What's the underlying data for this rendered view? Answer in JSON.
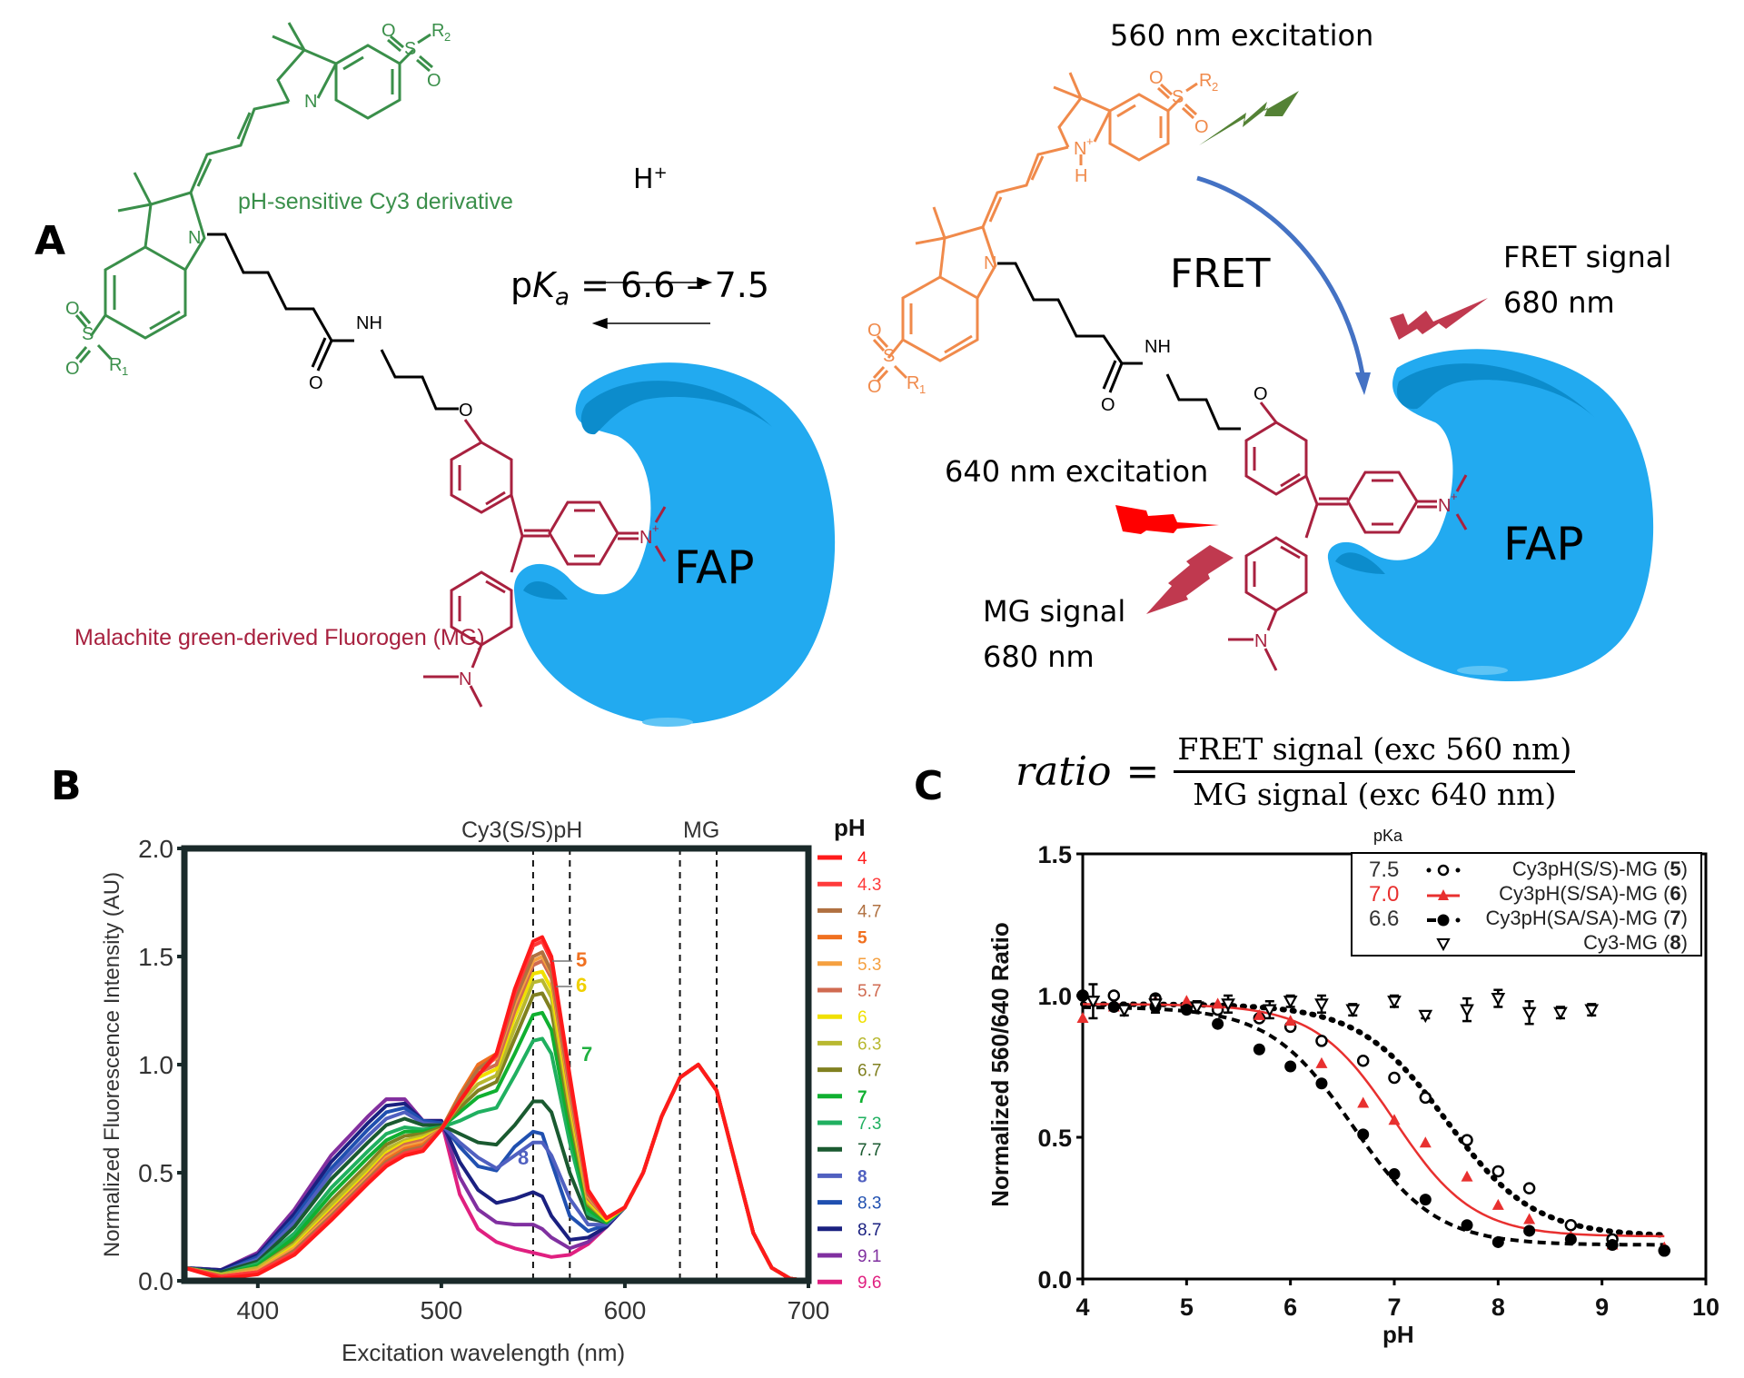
{
  "panelA": {
    "label": "A",
    "left": {
      "cy3_label": "pH-sensitive Cy3 derivative",
      "mg_label": "Malachite green-derived Fluorogen (MG)",
      "atoms": {
        "O": "O",
        "S": "S",
        "R1": "R",
        "R1sub": "1",
        "R2": "R",
        "R2sub": "2",
        "N": "N",
        "NH": "NH",
        "Nplus": "N",
        "plus": "+"
      },
      "fap_label": "FAP"
    },
    "equilibrium": {
      "proton": "H",
      "proton_sup": "+",
      "pka_p": "p",
      "pka_K": "K",
      "pka_a": "a",
      "pka_value": " = 6.6 – 7.5"
    },
    "right": {
      "exc560": "560 nm excitation",
      "fret": "FRET",
      "fret_signal": "FRET signal",
      "fret_signal_nm": "680 nm",
      "exc640": "640 nm excitation",
      "mg_signal": "MG signal",
      "mg_signal_nm": "680 nm",
      "fap_label": "FAP",
      "atoms": {
        "H": "H"
      }
    },
    "colors": {
      "cy3_green": "#3a8f4a",
      "cy3_orange": "#f08a4b",
      "mg_red": "#a8213f",
      "fap_blue": "#22aaf0",
      "fap_dark": "#0c8ccc",
      "fret_arrow": "#4472c4",
      "bolt_green": "#548235",
      "bolt_red": "#ff0000",
      "bolt_crimson": "#c0394f"
    }
  },
  "panelB": {
    "label": "B",
    "chart_data": {
      "type": "line",
      "title": "",
      "xlabel": "Excitation wavelength (nm)",
      "ylabel": "Normalized Fluorescence Intensity (AU)",
      "xlim": [
        360,
        700
      ],
      "ylim": [
        0,
        2.0
      ],
      "xticks": [
        400,
        500,
        600,
        700
      ],
      "yticks": [
        "0.0",
        "0.5",
        "1.0",
        "1.5",
        "2.0"
      ],
      "annotations": {
        "cy3": "Cy3(S/S)pH",
        "mg": "MG",
        "dashed_lines_nm": [
          550,
          570,
          630,
          650
        ],
        "curve_labels": [
          {
            "text": "5",
            "color": "#f07020"
          },
          {
            "text": "6",
            "color": "#f0d000"
          },
          {
            "text": "7",
            "color": "#20b040"
          },
          {
            "text": "8",
            "color": "#5060c0"
          }
        ]
      },
      "legend_title": "pH",
      "legend": [
        {
          "name": "4",
          "color": "#ff1a1a",
          "bold": false
        },
        {
          "name": "4.3",
          "color": "#ff3b3b",
          "bold": false
        },
        {
          "name": "4.7",
          "color": "#b07040",
          "bold": false
        },
        {
          "name": "5",
          "color": "#f07020",
          "bold": true
        },
        {
          "name": "5.3",
          "color": "#f5a040",
          "bold": false
        },
        {
          "name": "5.7",
          "color": "#d06a50",
          "bold": false
        },
        {
          "name": "6",
          "color": "#f0e000",
          "bold": false
        },
        {
          "name": "6.3",
          "color": "#b8b830",
          "bold": false
        },
        {
          "name": "6.7",
          "color": "#808020",
          "bold": false
        },
        {
          "name": "7",
          "color": "#10b030",
          "bold": true
        },
        {
          "name": "7.3",
          "color": "#20b060",
          "bold": false
        },
        {
          "name": "7.7",
          "color": "#1a5a30",
          "bold": false
        },
        {
          "name": "8",
          "color": "#5060c0",
          "bold": true
        },
        {
          "name": "8.3",
          "color": "#2050b0",
          "bold": false
        },
        {
          "name": "8.7",
          "color": "#1a2080",
          "bold": false
        },
        {
          "name": "9.1",
          "color": "#8030a0",
          "bold": false
        },
        {
          "name": "9.6",
          "color": "#e02080",
          "bold": false
        }
      ],
      "x": [
        360,
        380,
        400,
        420,
        440,
        460,
        470,
        480,
        490,
        500,
        510,
        520,
        530,
        540,
        550,
        555,
        560,
        570,
        580,
        590,
        600,
        610,
        620,
        630,
        640,
        650,
        660,
        670,
        680,
        690,
        700
      ],
      "series": [
        {
          "name": "4",
          "values": [
            0.06,
            0.01,
            0.03,
            0.12,
            0.28,
            0.45,
            0.53,
            0.58,
            0.6,
            0.7,
            0.83,
            0.95,
            1.05,
            1.35,
            1.57,
            1.59,
            1.5,
            0.95,
            0.42,
            0.29,
            0.34,
            0.5,
            0.76,
            0.94,
            1.0,
            0.88,
            0.55,
            0.22,
            0.06,
            0.01,
            0.0
          ]
        },
        {
          "name": "4.3",
          "values": [
            0.06,
            0.02,
            0.04,
            0.13,
            0.29,
            0.46,
            0.54,
            0.59,
            0.61,
            0.7,
            0.83,
            0.95,
            1.04,
            1.33,
            1.55,
            1.57,
            1.48,
            0.93,
            0.41,
            0.29,
            0.34,
            0.5,
            0.76,
            0.94,
            1.0,
            0.88,
            0.55,
            0.22,
            0.06,
            0.01,
            0.0
          ]
        },
        {
          "name": "4.7",
          "values": [
            0.06,
            0.02,
            0.04,
            0.14,
            0.3,
            0.47,
            0.55,
            0.6,
            0.62,
            0.7,
            0.85,
            0.98,
            1.04,
            1.3,
            1.5,
            1.52,
            1.43,
            0.9,
            0.4,
            0.29,
            0.34,
            0.5,
            0.76,
            0.94,
            1.0,
            0.88,
            0.55,
            0.22,
            0.06,
            0.01,
            0.0
          ]
        },
        {
          "name": "5",
          "values": [
            0.06,
            0.02,
            0.04,
            0.14,
            0.3,
            0.47,
            0.56,
            0.61,
            0.63,
            0.7,
            0.86,
            1.0,
            1.05,
            1.32,
            1.55,
            1.57,
            1.48,
            0.92,
            0.4,
            0.29,
            0.34,
            0.5,
            0.76,
            0.94,
            1.0,
            0.88,
            0.55,
            0.22,
            0.06,
            0.01,
            0.0
          ]
        },
        {
          "name": "5.3",
          "values": [
            0.06,
            0.02,
            0.05,
            0.15,
            0.31,
            0.48,
            0.57,
            0.62,
            0.64,
            0.7,
            0.86,
            0.98,
            1.03,
            1.28,
            1.48,
            1.5,
            1.42,
            0.88,
            0.39,
            0.29,
            0.34,
            0.5,
            0.76,
            0.94,
            1.0,
            0.88,
            0.55,
            0.22,
            0.06,
            0.01,
            0.0
          ]
        },
        {
          "name": "5.7",
          "values": [
            0.06,
            0.02,
            0.05,
            0.15,
            0.32,
            0.49,
            0.58,
            0.63,
            0.65,
            0.7,
            0.85,
            0.96,
            1.0,
            1.25,
            1.46,
            1.48,
            1.4,
            0.86,
            0.38,
            0.29,
            0.34,
            0.5,
            0.76,
            0.94,
            1.0,
            0.88,
            0.55,
            0.22,
            0.06,
            0.01,
            0.0
          ]
        },
        {
          "name": "6",
          "values": [
            0.06,
            0.02,
            0.05,
            0.16,
            0.33,
            0.5,
            0.59,
            0.64,
            0.66,
            0.7,
            0.84,
            0.94,
            0.98,
            1.22,
            1.42,
            1.43,
            1.35,
            0.83,
            0.37,
            0.28,
            0.34,
            0.5,
            0.76,
            0.94,
            1.0,
            0.88,
            0.55,
            0.22,
            0.06,
            0.01,
            0.0
          ]
        },
        {
          "name": "6.3",
          "values": [
            0.06,
            0.03,
            0.06,
            0.17,
            0.35,
            0.52,
            0.61,
            0.65,
            0.67,
            0.7,
            0.82,
            0.91,
            0.95,
            1.17,
            1.38,
            1.39,
            1.31,
            0.8,
            0.36,
            0.28,
            0.34,
            0.5,
            0.76,
            0.94,
            1.0,
            0.88,
            0.55,
            0.22,
            0.06,
            0.01,
            0.0
          ]
        },
        {
          "name": "6.7",
          "values": [
            0.06,
            0.03,
            0.06,
            0.18,
            0.37,
            0.54,
            0.63,
            0.67,
            0.68,
            0.71,
            0.8,
            0.88,
            0.92,
            1.12,
            1.32,
            1.33,
            1.25,
            0.76,
            0.35,
            0.28,
            0.34,
            0.5,
            0.76,
            0.94,
            1.0,
            0.88,
            0.55,
            0.22,
            0.06,
            0.01,
            0.0
          ]
        },
        {
          "name": "7",
          "values": [
            0.06,
            0.03,
            0.07,
            0.2,
            0.4,
            0.57,
            0.65,
            0.69,
            0.69,
            0.71,
            0.78,
            0.85,
            0.88,
            1.05,
            1.23,
            1.24,
            1.16,
            0.7,
            0.33,
            0.27,
            0.34,
            0.5,
            0.76,
            0.94,
            1.0,
            0.88,
            0.55,
            0.22,
            0.06,
            0.01,
            0.0
          ]
        },
        {
          "name": "7.3",
          "values": [
            0.06,
            0.03,
            0.08,
            0.22,
            0.43,
            0.6,
            0.68,
            0.71,
            0.7,
            0.71,
            0.74,
            0.78,
            0.8,
            0.95,
            1.11,
            1.12,
            1.05,
            0.64,
            0.31,
            0.27,
            0.34,
            0.5,
            0.76,
            0.94,
            1.0,
            0.88,
            0.55,
            0.22,
            0.06,
            0.01,
            0.0
          ]
        },
        {
          "name": "7.7",
          "values": [
            0.06,
            0.04,
            0.09,
            0.25,
            0.47,
            0.64,
            0.72,
            0.75,
            0.72,
            0.72,
            0.68,
            0.64,
            0.63,
            0.72,
            0.83,
            0.83,
            0.78,
            0.5,
            0.29,
            0.27,
            0.34,
            0.5,
            0.76,
            0.94,
            1.0,
            0.88,
            0.55,
            0.22,
            0.06,
            0.01,
            0.0
          ]
        },
        {
          "name": "8",
          "values": [
            0.06,
            0.04,
            0.1,
            0.27,
            0.5,
            0.67,
            0.75,
            0.78,
            0.73,
            0.72,
            0.64,
            0.57,
            0.52,
            0.58,
            0.64,
            0.64,
            0.58,
            0.38,
            0.26,
            0.26,
            0.34,
            0.5,
            0.76,
            0.94,
            1.0,
            0.88,
            0.55,
            0.22,
            0.06,
            0.01,
            0.0
          ]
        },
        {
          "name": "8.3",
          "values": [
            0.06,
            0.04,
            0.11,
            0.29,
            0.52,
            0.7,
            0.78,
            0.8,
            0.74,
            0.73,
            0.62,
            0.53,
            0.51,
            0.62,
            0.69,
            0.68,
            0.55,
            0.3,
            0.23,
            0.26,
            0.34,
            0.5,
            0.76,
            0.94,
            1.0,
            0.88,
            0.55,
            0.22,
            0.06,
            0.01,
            0.0
          ]
        },
        {
          "name": "8.7",
          "values": [
            0.06,
            0.05,
            0.12,
            0.31,
            0.55,
            0.73,
            0.81,
            0.82,
            0.74,
            0.74,
            0.55,
            0.42,
            0.36,
            0.38,
            0.41,
            0.39,
            0.3,
            0.19,
            0.2,
            0.25,
            0.34,
            0.5,
            0.76,
            0.94,
            1.0,
            0.88,
            0.55,
            0.22,
            0.06,
            0.01,
            0.0
          ]
        },
        {
          "name": "9.1",
          "values": [
            0.06,
            0.05,
            0.13,
            0.33,
            0.58,
            0.76,
            0.84,
            0.84,
            0.74,
            0.74,
            0.48,
            0.33,
            0.27,
            0.26,
            0.26,
            0.24,
            0.2,
            0.15,
            0.18,
            0.25,
            0.34,
            0.5,
            0.76,
            0.94,
            1.0,
            0.88,
            0.55,
            0.22,
            0.06,
            0.01,
            0.0
          ]
        },
        {
          "name": "9.6",
          "values": [
            0.06,
            0.05,
            0.13,
            0.33,
            0.58,
            0.76,
            0.84,
            0.84,
            0.74,
            0.74,
            0.4,
            0.24,
            0.18,
            0.15,
            0.13,
            0.12,
            0.11,
            0.12,
            0.17,
            0.25,
            0.34,
            0.5,
            0.76,
            0.94,
            1.0,
            0.88,
            0.55,
            0.22,
            0.06,
            0.01,
            0.0
          ]
        }
      ]
    }
  },
  "panelC": {
    "label": "C",
    "equation": {
      "lhs": "ratio",
      "eq": "=",
      "numerator": "FRET signal (exc 560 nm)",
      "denominator": "MG signal (exc 640 nm)"
    },
    "chart_data": {
      "type": "scatter",
      "title": "",
      "xlabel": "pH",
      "ylabel": "Normalized 560/640 Ratio",
      "xlim": [
        4,
        10
      ],
      "ylim": [
        0,
        1.5
      ],
      "xticks": [
        "4",
        "5",
        "6",
        "7",
        "8",
        "9",
        "10"
      ],
      "yticks": [
        "0.0",
        "0.5",
        "1.0",
        "1.5"
      ],
      "legend_placement": "top-right",
      "legend_header": "pKa",
      "series": [
        {
          "name": "Cy3pH(S/S)-MG",
          "num": "5",
          "pka": "7.5",
          "color": "#000000",
          "marker": "open-circle",
          "fit": "dotted",
          "pka_value": 7.5,
          "x": [
            4.0,
            4.3,
            4.7,
            5.0,
            5.3,
            5.7,
            6.0,
            6.3,
            6.7,
            7.0,
            7.3,
            7.7,
            8.0,
            8.3,
            8.7,
            9.1,
            9.6
          ],
          "y": [
            1.0,
            1.0,
            0.99,
            0.96,
            0.95,
            0.92,
            0.89,
            0.84,
            0.77,
            0.71,
            0.64,
            0.49,
            0.38,
            0.32,
            0.19,
            0.14,
            0.1
          ]
        },
        {
          "name": "Cy3pH(S/SA)-MG",
          "num": "6",
          "pka": "7.0",
          "color": "#e8302f",
          "marker": "triangle",
          "fit": "solid",
          "pka_value": 7.0,
          "x": [
            4.0,
            4.3,
            4.7,
            5.0,
            5.3,
            5.7,
            6.0,
            6.3,
            6.7,
            7.0,
            7.3,
            7.7,
            8.0,
            8.3,
            8.7,
            9.1,
            9.6
          ],
          "y": [
            0.92,
            0.96,
            0.98,
            0.98,
            0.97,
            0.93,
            0.91,
            0.76,
            0.62,
            0.56,
            0.48,
            0.36,
            0.26,
            0.21,
            0.15,
            0.12,
            0.11
          ]
        },
        {
          "name": "Cy3pH(SA/SA)-MG",
          "num": "7",
          "pka": "6.6",
          "color": "#000000",
          "marker": "filled-circle",
          "fit": "dashed",
          "pka_value": 6.6,
          "x": [
            4.0,
            4.3,
            4.7,
            5.0,
            5.3,
            5.7,
            6.0,
            6.3,
            6.7,
            7.0,
            7.3,
            7.7,
            8.0,
            8.3,
            8.7,
            9.1,
            9.6
          ],
          "y": [
            1.0,
            0.96,
            0.96,
            0.95,
            0.9,
            0.81,
            0.75,
            0.69,
            0.51,
            0.37,
            0.28,
            0.19,
            0.13,
            0.17,
            0.14,
            0.12,
            0.1
          ]
        },
        {
          "name": "Cy3-MG",
          "num": "8",
          "pka": "",
          "color": "#000000",
          "marker": "open-triangle-down",
          "fit": "none",
          "x": [
            4.1,
            4.4,
            4.7,
            5.1,
            5.4,
            5.8,
            6.0,
            6.3,
            6.6,
            7.0,
            7.3,
            7.7,
            8.0,
            8.3,
            8.6,
            8.9
          ],
          "y": [
            0.98,
            0.95,
            0.97,
            0.96,
            0.97,
            0.95,
            0.98,
            0.97,
            0.95,
            0.98,
            0.93,
            0.95,
            0.99,
            0.94,
            0.94,
            0.95
          ]
        }
      ]
    }
  }
}
